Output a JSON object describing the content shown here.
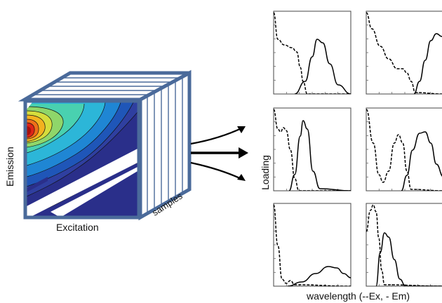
{
  "labels": {
    "emission": "Emission",
    "excitation": "Excitation",
    "samples": "samples",
    "loading": "Loading",
    "wavelength": "wavelength (--Ex, - Em)"
  },
  "colors": {
    "cube_frame": "#4a6a9a",
    "slab_line": "#3a5a8a",
    "background_blue": "#2a2f8a",
    "contour_palette": [
      "#2a2f8a",
      "#1f56b8",
      "#1f86d4",
      "#2cb6d8",
      "#49d1b0",
      "#8fd66a",
      "#d6dd3c",
      "#f3b21f",
      "#ef6f1a",
      "#dd2418",
      "#a8100e"
    ],
    "panel_border": "#444444",
    "curve": "#000000"
  },
  "panels": [
    {
      "id": "loading-1-1",
      "row": 1,
      "col": 1
    },
    {
      "id": "loading-1-2",
      "row": 1,
      "col": 2
    },
    {
      "id": "loading-2-1",
      "row": 2,
      "col": 1
    },
    {
      "id": "loading-2-2",
      "row": 2,
      "col": 2
    },
    {
      "id": "loading-3-1",
      "row": 3,
      "col": 1
    },
    {
      "id": "loading-3-2",
      "row": 3,
      "col": 2
    }
  ]
}
